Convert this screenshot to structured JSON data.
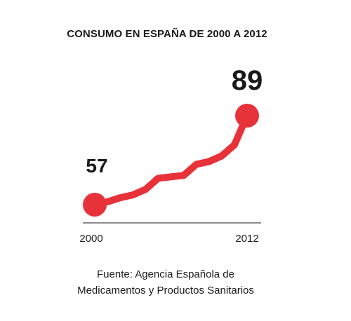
{
  "chart_data": {
    "type": "line",
    "title": "CONSUMO EN ESPAÑA DE 2000 A 2012",
    "x": [
      2000,
      2001,
      2002,
      2003,
      2004,
      2005,
      2006,
      2007,
      2008,
      2009,
      2010,
      2011,
      2012
    ],
    "x_tick_labels": [
      "2000",
      "2012"
    ],
    "series": [
      {
        "values": [
          57,
          58,
          59.5,
          60.5,
          62.5,
          66.5,
          67,
          67.5,
          71.5,
          72.5,
          74.5,
          78.5,
          89
        ],
        "color": "#e8323a"
      }
    ],
    "point_labels": {
      "first": "57",
      "last": "89"
    },
    "ylim": [
      53,
      92
    ],
    "grid": false,
    "legend": "none",
    "source": [
      "Fuente: Agencia Española de",
      "Medicamentos y Productos Sanitarios"
    ]
  }
}
